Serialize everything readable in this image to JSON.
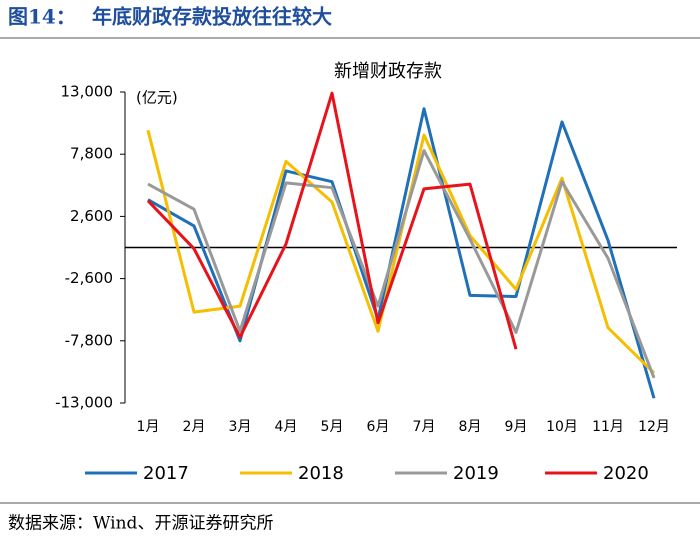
{
  "chart_data": {
    "type": "line",
    "figure_number": "图14：",
    "title": "年底财政存款投放往往较大",
    "subtitle": "新增财政存款",
    "y_unit": "(亿元)",
    "source": "数据来源：Wind、开源证券研究所",
    "categories": [
      "1月",
      "2月",
      "3月",
      "4月",
      "5月",
      "6月",
      "7月",
      "8月",
      "9月",
      "10月",
      "11月",
      "12月"
    ],
    "series": [
      {
        "name": "2017",
        "color": "#1f70b8",
        "values": [
          4000,
          1800,
          -7800,
          6400,
          5500,
          -6000,
          11600,
          -4000,
          -4100,
          10500,
          600,
          -12600
        ]
      },
      {
        "name": "2018",
        "color": "#f5be00",
        "values": [
          9800,
          -5400,
          -4900,
          7200,
          3800,
          -7000,
          9400,
          1000,
          -3500,
          5800,
          -6700,
          -10500
        ]
      },
      {
        "name": "2019",
        "color": "#999999",
        "values": [
          5300,
          3200,
          -7000,
          5400,
          5000,
          -4900,
          8100,
          700,
          -7100,
          5500,
          -900,
          -10900
        ]
      },
      {
        "name": "2020",
        "color": "#e8121a",
        "values": [
          3900,
          -100,
          -7500,
          300,
          12900,
          -6300,
          4900,
          5300,
          -8500,
          null,
          null,
          null
        ]
      }
    ],
    "ylim": [
      -13000,
      13000
    ],
    "yticks": [
      {
        "value": 13000,
        "label": "13,000"
      },
      {
        "value": 7800,
        "label": "7,800"
      },
      {
        "value": 2600,
        "label": "2,600"
      },
      {
        "value": -2600,
        "label": "-2,600"
      },
      {
        "value": -7800,
        "label": "-7,800"
      },
      {
        "value": -13000,
        "label": "-13,000"
      }
    ],
    "legend": "bottom"
  }
}
